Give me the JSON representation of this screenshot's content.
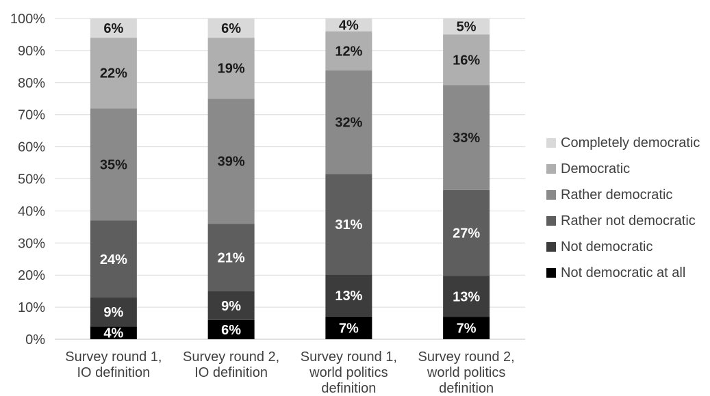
{
  "chart_data": {
    "type": "bar",
    "stacked": true,
    "categories": [
      [
        "Survey round 1,",
        "IO definition"
      ],
      [
        "Survey round 2,",
        "IO definition"
      ],
      [
        "Survey round 1,",
        "world politics",
        "definition"
      ],
      [
        "Survey round 2,",
        "world politics",
        "definition"
      ]
    ],
    "yticks": [
      "0%",
      "10%",
      "20%",
      "30%",
      "40%",
      "50%",
      "60%",
      "70%",
      "80%",
      "90%",
      "100%"
    ],
    "ylim": [
      0,
      100
    ],
    "grid": true,
    "legend_position": "right",
    "series": [
      {
        "name": "Not democratic at all",
        "color": "#000000",
        "label_color": "#ffffff",
        "values": [
          4,
          6,
          7,
          7
        ],
        "labels": [
          "4%",
          "6%",
          "7%",
          "7%"
        ]
      },
      {
        "name": "Not democratic",
        "color": "#3c3c3c",
        "label_color": "#ffffff",
        "values": [
          9,
          9,
          13,
          13
        ],
        "labels": [
          "9%",
          "9%",
          "13%",
          "13%"
        ]
      },
      {
        "name": "Rather not democratic",
        "color": "#5e5e5e",
        "label_color": "#ffffff",
        "values": [
          24,
          21,
          31,
          27
        ],
        "labels": [
          "24%",
          "21%",
          "31%",
          "27%"
        ]
      },
      {
        "name": "Rather democratic",
        "color": "#8a8a8a",
        "label_color": "#1a1a1a",
        "values": [
          35,
          39,
          32,
          33
        ],
        "labels": [
          "35%",
          "39%",
          "32%",
          "33%"
        ]
      },
      {
        "name": "Democratic",
        "color": "#afafaf",
        "label_color": "#1a1a1a",
        "values": [
          22,
          19,
          12,
          16
        ],
        "labels": [
          "22%",
          "19%",
          "12%",
          "16%"
        ]
      },
      {
        "name": "Completely democratic",
        "color": "#d9d9d9",
        "label_color": "#1a1a1a",
        "values": [
          6,
          6,
          4,
          5
        ],
        "labels": [
          "6%",
          "6%",
          "4%",
          "5%"
        ]
      }
    ]
  }
}
